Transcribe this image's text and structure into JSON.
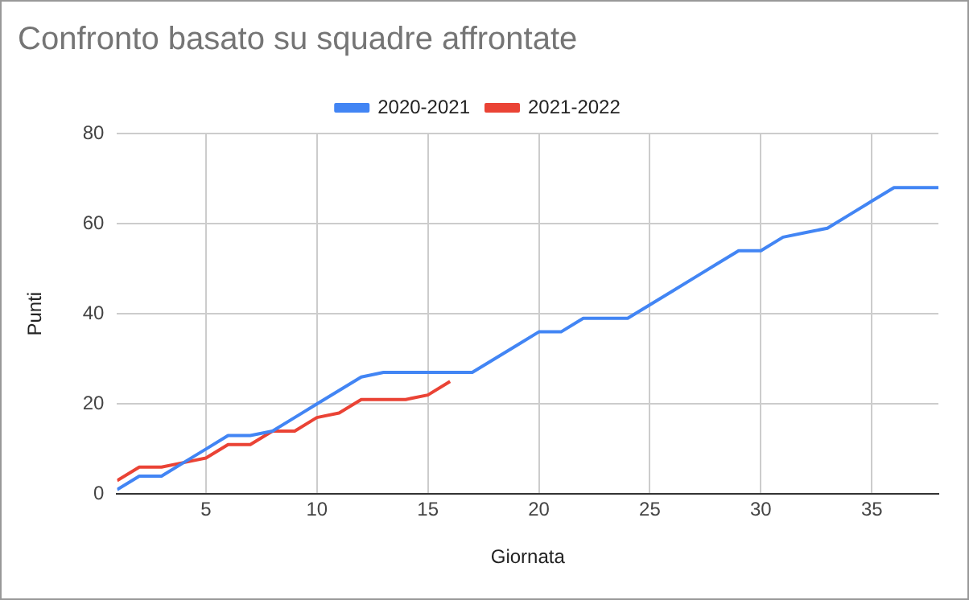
{
  "chart_data": {
    "type": "line",
    "title": "Confronto basato su squadre affrontate",
    "xlabel": "Giornata",
    "ylabel": "Punti",
    "x": [
      1,
      2,
      3,
      4,
      5,
      6,
      7,
      8,
      9,
      10,
      11,
      12,
      13,
      14,
      15,
      16,
      17,
      18,
      19,
      20,
      21,
      22,
      23,
      24,
      25,
      26,
      27,
      28,
      29,
      30,
      31,
      32,
      33,
      34,
      35,
      36,
      37,
      38
    ],
    "series": [
      {
        "name": "2020-2021",
        "color": "#4285f4",
        "values": [
          1,
          4,
          4,
          7,
          10,
          13,
          13,
          14,
          17,
          20,
          23,
          26,
          27,
          27,
          27,
          27,
          27,
          30,
          33,
          36,
          36,
          39,
          39,
          39,
          42,
          45,
          48,
          51,
          54,
          54,
          57,
          58,
          59,
          62,
          65,
          68,
          68,
          68
        ]
      },
      {
        "name": "2021-2022",
        "color": "#ea4335",
        "values": [
          3,
          6,
          6,
          7,
          8,
          11,
          11,
          14,
          14,
          17,
          18,
          21,
          21,
          21,
          22,
          25,
          null,
          null,
          null,
          null,
          null,
          null,
          null,
          null,
          null,
          null,
          null,
          null,
          null,
          null,
          null,
          null,
          null,
          null,
          null,
          null,
          null,
          null
        ]
      }
    ],
    "xlim": [
      1,
      38
    ],
    "xticks": [
      5,
      10,
      15,
      20,
      25,
      30,
      35
    ],
    "ylim": [
      0,
      80
    ],
    "yticks": [
      0,
      20,
      40,
      60,
      80
    ],
    "grid": true,
    "legend": "top",
    "marker": "none",
    "line_style": "solid"
  }
}
